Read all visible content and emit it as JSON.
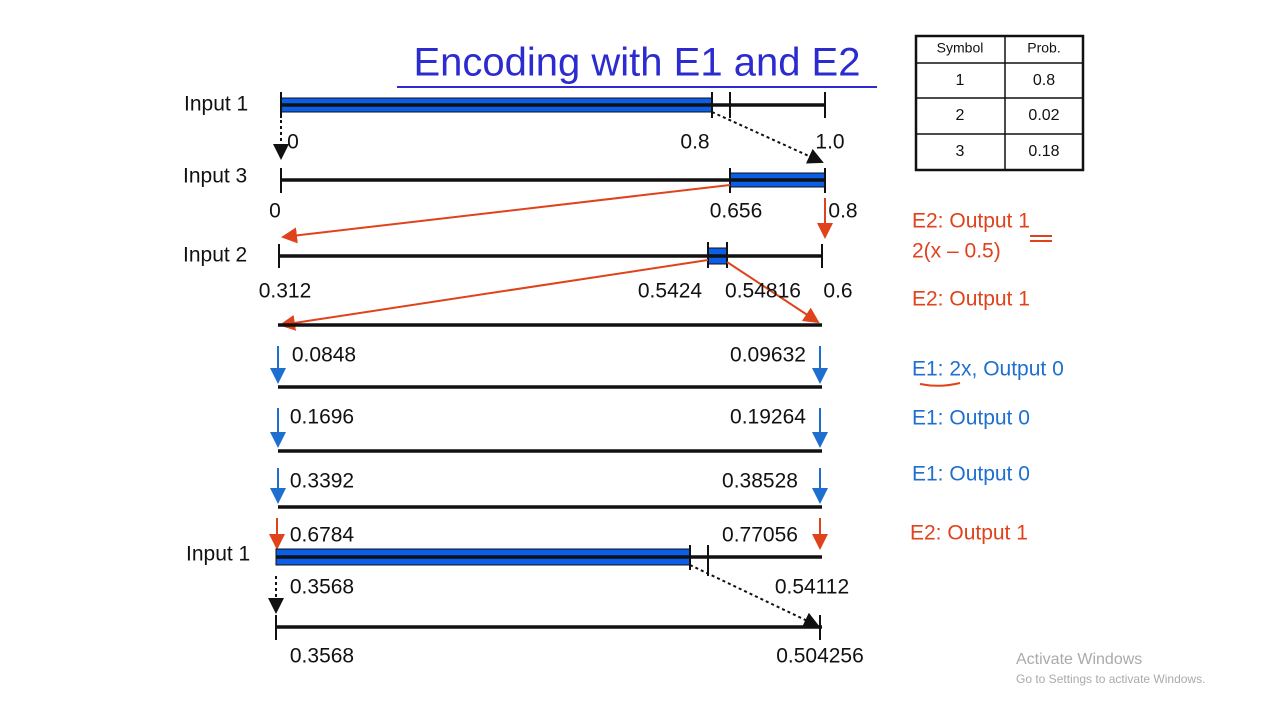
{
  "title": "Encoding with E1 and E2",
  "table": {
    "header": [
      "Symbol",
      "Prob."
    ],
    "rows": [
      [
        "1",
        "0.8"
      ],
      [
        "2",
        "0.02"
      ],
      [
        "3",
        "0.18"
      ]
    ]
  },
  "inputs": [
    "Input 1",
    "Input 3",
    "Input 2",
    "Input 1"
  ],
  "values": [
    "0",
    "0.8",
    "1.0",
    "0",
    "0.656",
    "0.8",
    "0.312",
    "0.5424",
    "0.54816",
    "0.6",
    "0.0848",
    "0.09632",
    "0.1696",
    "0.19264",
    "0.3392",
    "0.38528",
    "0.6784",
    "0.77056",
    "0.3568",
    "0.54112",
    "0.3568",
    "0.504256"
  ],
  "notes": [
    "E2: Output 1",
    "2(x – 0.5)",
    "E2: Output 1",
    "E1: 2x, Output 0",
    "E1: Output 0",
    "E1: Output 0",
    "E2: Output 1"
  ],
  "watermark": [
    "Activate Windows",
    "Go to Settings to activate Windows."
  ]
}
